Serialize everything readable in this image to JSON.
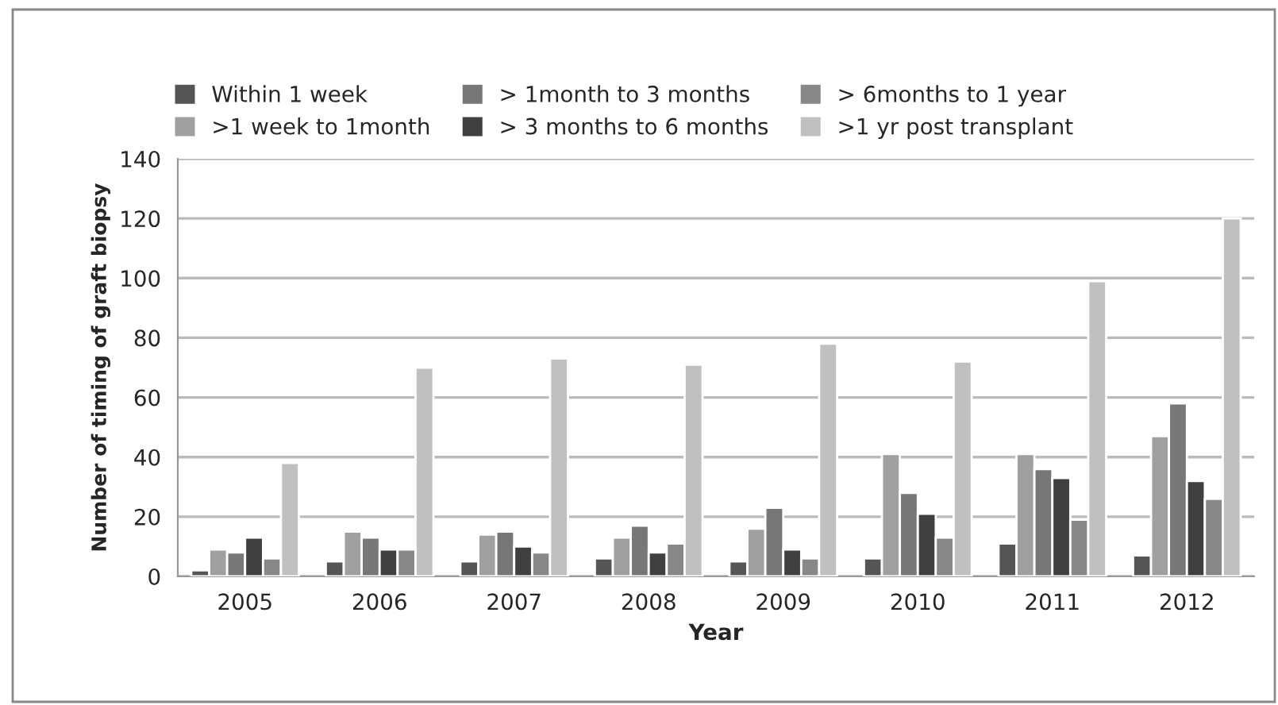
{
  "chart_data": {
    "type": "bar",
    "xlabel": "Year",
    "ylabel": "Number of timing of graft biopsy",
    "categories": [
      "2005",
      "2006",
      "2007",
      "2008",
      "2009",
      "2010",
      "2011",
      "2012"
    ],
    "series": [
      {
        "name": "Within 1 week",
        "color": "#555555",
        "values": [
          2,
          5,
          5,
          6,
          5,
          6,
          11,
          7
        ]
      },
      {
        "name": ">1 week to 1month",
        "color": "#a0a0a0",
        "values": [
          9,
          15,
          14,
          13,
          16,
          41,
          41,
          47
        ]
      },
      {
        "name": "> 1month to 3 months",
        "color": "#777777",
        "values": [
          8,
          13,
          15,
          17,
          23,
          28,
          36,
          58
        ]
      },
      {
        "name": "> 3 months to 6 months",
        "color": "#404040",
        "values": [
          13,
          9,
          10,
          8,
          9,
          21,
          33,
          32
        ]
      },
      {
        "name": "> 6months to 1 year",
        "color": "#888888",
        "values": [
          6,
          9,
          8,
          11,
          6,
          13,
          19,
          26
        ]
      },
      {
        "name": ">1 yr post transplant",
        "color": "#c0c0c0",
        "values": [
          38,
          70,
          73,
          71,
          78,
          72,
          99,
          120
        ]
      }
    ],
    "ylim": [
      0,
      140
    ],
    "yticks": [
      0,
      20,
      40,
      60,
      80,
      100,
      120,
      140
    ],
    "grid": "y",
    "legend": "top"
  }
}
